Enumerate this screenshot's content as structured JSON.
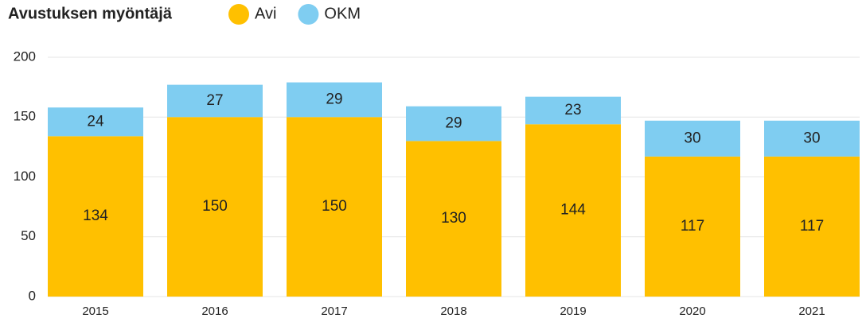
{
  "chart_data": {
    "type": "bar",
    "stacked": true,
    "legend_title": "Avustuksen myöntäjä",
    "categories": [
      "2015",
      "2016",
      "2017",
      "2018",
      "2019",
      "2020",
      "2021"
    ],
    "series": [
      {
        "name": "Avi",
        "color": "#FFC000",
        "values": [
          134,
          150,
          150,
          130,
          144,
          117,
          117
        ]
      },
      {
        "name": "OKM",
        "color": "#7FCDF1",
        "values": [
          24,
          27,
          29,
          29,
          23,
          30,
          30
        ]
      }
    ],
    "ylim": [
      0,
      200
    ],
    "yticks": [
      0,
      50,
      100,
      150,
      200
    ],
    "grid": true,
    "legend": "top-left"
  }
}
